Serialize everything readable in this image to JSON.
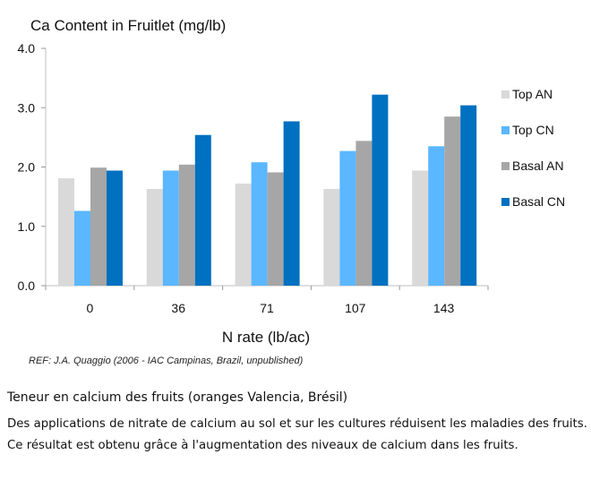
{
  "chart_data": {
    "type": "bar",
    "title": "Ca Content in Fruitlet (mg/lb)",
    "xlabel": "N rate (lb/ac)",
    "ylabel": "",
    "categories": [
      "0",
      "36",
      "71",
      "107",
      "143"
    ],
    "ylim": [
      0,
      4.0
    ],
    "yticks": [
      "0.0",
      "1.0",
      "2.0",
      "3.0",
      "4.0"
    ],
    "grid": false,
    "legend_position": "right",
    "series": [
      {
        "name": "Top AN",
        "color": "#d9d9d9",
        "values": [
          1.81,
          1.63,
          1.72,
          1.63,
          1.94
        ]
      },
      {
        "name": "Top CN",
        "color": "#5bb7ff",
        "values": [
          1.26,
          1.94,
          2.08,
          2.27,
          2.35
        ]
      },
      {
        "name": "Basal AN",
        "color": "#a6a6a6",
        "values": [
          1.99,
          2.04,
          1.91,
          2.44,
          2.85
        ]
      },
      {
        "name": "Basal CN",
        "color": "#0070c0",
        "values": [
          1.94,
          2.54,
          2.77,
          3.22,
          3.04
        ]
      }
    ]
  },
  "reference": "REF: J.A. Quaggio (2006 - IAC Campinas, Brazil, unpublished)",
  "caption": {
    "heading": "Teneur en calcium des fruits (oranges Valencia, Brésil)",
    "text": "Des applications de nitrate de calcium au sol et sur les cultures réduisent les maladies des fruits. Ce résultat est obtenu grâce à l'augmentation des niveaux de calcium dans les fruits."
  }
}
